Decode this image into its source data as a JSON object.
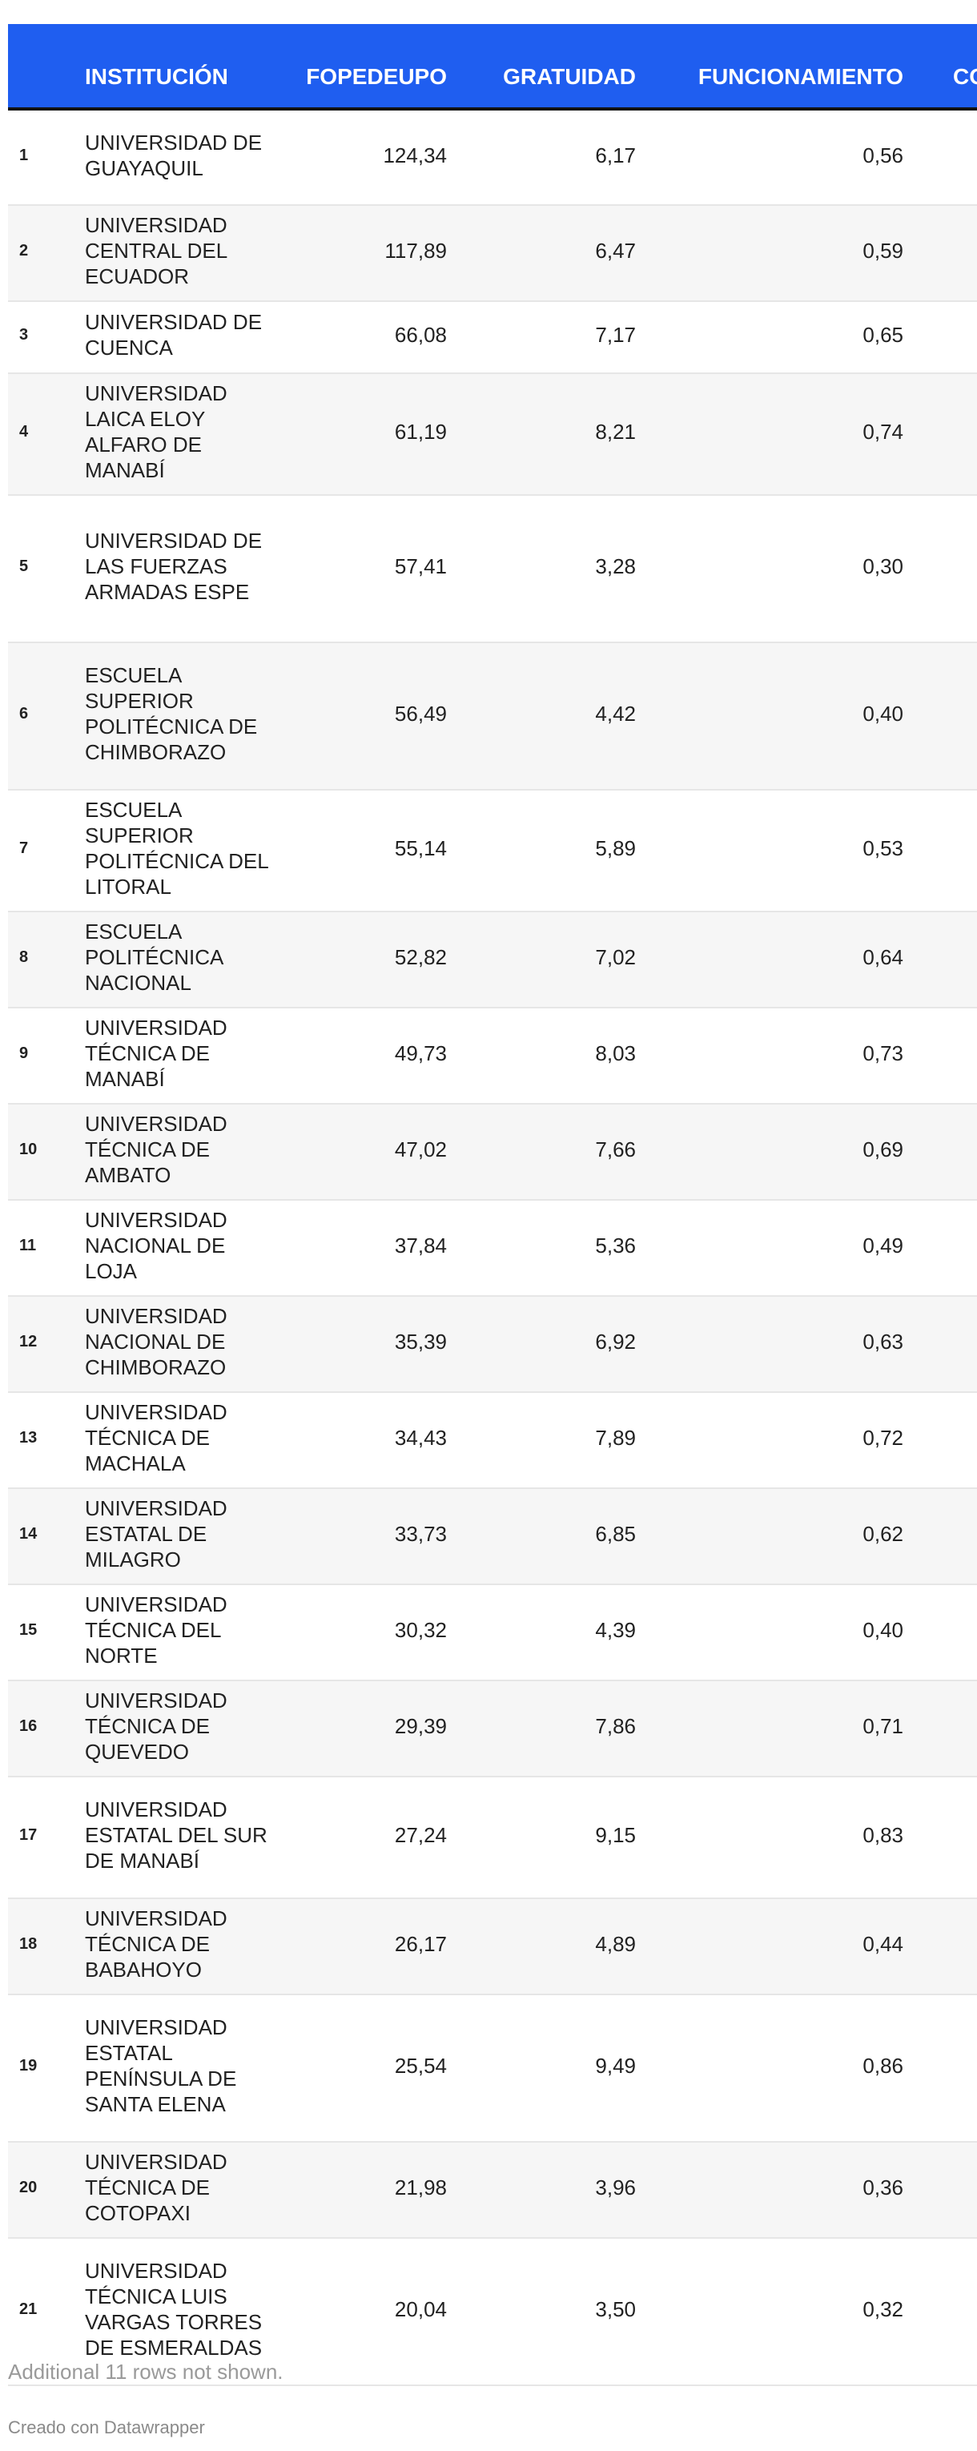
{
  "chart_data": {
    "type": "table",
    "columns": [
      "INSTITUCIÓN",
      "FOPEDEUPO",
      "GRATUIDAD",
      "FUNCIONAMIENTO",
      "CO"
    ],
    "rows": [
      {
        "rank": "1",
        "name": "UNIVERSIDAD DE GUAYAQUIL",
        "fopedeupo": "124,34",
        "gratuidad": "6,17",
        "funcionamiento": "0,56"
      },
      {
        "rank": "2",
        "name": "UNIVERSIDAD CENTRAL DEL ECUADOR",
        "fopedeupo": "117,89",
        "gratuidad": "6,47",
        "funcionamiento": "0,59"
      },
      {
        "rank": "3",
        "name": "UNIVERSIDAD DE CUENCA",
        "fopedeupo": "66,08",
        "gratuidad": "7,17",
        "funcionamiento": "0,65"
      },
      {
        "rank": "4",
        "name": "UNIVERSIDAD LAICA ELOY ALFARO DE MANABÍ",
        "fopedeupo": "61,19",
        "gratuidad": "8,21",
        "funcionamiento": "0,74"
      },
      {
        "rank": "5",
        "name": "UNIVERSIDAD DE LAS FUERZAS ARMADAS ESPE",
        "fopedeupo": "57,41",
        "gratuidad": "3,28",
        "funcionamiento": "0,30"
      },
      {
        "rank": "6",
        "name": "ESCUELA SUPERIOR POLITÉCNICA DE CHIMBORAZO",
        "fopedeupo": "56,49",
        "gratuidad": "4,42",
        "funcionamiento": "0,40"
      },
      {
        "rank": "7",
        "name": "ESCUELA SUPERIOR POLITÉCNICA DEL LITORAL",
        "fopedeupo": "55,14",
        "gratuidad": "5,89",
        "funcionamiento": "0,53"
      },
      {
        "rank": "8",
        "name": "ESCUELA POLITÉCNICA NACIONAL",
        "fopedeupo": "52,82",
        "gratuidad": "7,02",
        "funcionamiento": "0,64"
      },
      {
        "rank": "9",
        "name": "UNIVERSIDAD TÉCNICA DE MANABÍ",
        "fopedeupo": "49,73",
        "gratuidad": "8,03",
        "funcionamiento": "0,73"
      },
      {
        "rank": "10",
        "name": "UNIVERSIDAD TÉCNICA DE AMBATO",
        "fopedeupo": "47,02",
        "gratuidad": "7,66",
        "funcionamiento": "0,69"
      },
      {
        "rank": "11",
        "name": "UNIVERSIDAD NACIONAL DE LOJA",
        "fopedeupo": "37,84",
        "gratuidad": "5,36",
        "funcionamiento": "0,49"
      },
      {
        "rank": "12",
        "name": "UNIVERSIDAD NACIONAL DE CHIMBORAZO",
        "fopedeupo": "35,39",
        "gratuidad": "6,92",
        "funcionamiento": "0,63"
      },
      {
        "rank": "13",
        "name": "UNIVERSIDAD TÉCNICA DE MACHALA",
        "fopedeupo": "34,43",
        "gratuidad": "7,89",
        "funcionamiento": "0,72"
      },
      {
        "rank": "14",
        "name": "UNIVERSIDAD ESTATAL DE MILAGRO",
        "fopedeupo": "33,73",
        "gratuidad": "6,85",
        "funcionamiento": "0,62"
      },
      {
        "rank": "15",
        "name": "UNIVERSIDAD TÉCNICA DEL NORTE",
        "fopedeupo": "30,32",
        "gratuidad": "4,39",
        "funcionamiento": "0,40"
      },
      {
        "rank": "16",
        "name": "UNIVERSIDAD TÉCNICA DE QUEVEDO",
        "fopedeupo": "29,39",
        "gratuidad": "7,86",
        "funcionamiento": "0,71"
      },
      {
        "rank": "17",
        "name": "UNIVERSIDAD ESTATAL DEL SUR DE MANABÍ",
        "fopedeupo": "27,24",
        "gratuidad": "9,15",
        "funcionamiento": "0,83"
      },
      {
        "rank": "18",
        "name": "UNIVERSIDAD TÉCNICA DE BABAHOYO",
        "fopedeupo": "26,17",
        "gratuidad": "4,89",
        "funcionamiento": "0,44"
      },
      {
        "rank": "19",
        "name": "UNIVERSIDAD ESTATAL PENÍNSULA DE SANTA ELENA",
        "fopedeupo": "25,54",
        "gratuidad": "9,49",
        "funcionamiento": "0,86"
      },
      {
        "rank": "20",
        "name": "UNIVERSIDAD TÉCNICA DE COTOPAXI",
        "fopedeupo": "21,98",
        "gratuidad": "3,96",
        "funcionamiento": "0,36"
      },
      {
        "rank": "21",
        "name": "UNIVERSIDAD TÉCNICA LUIS VARGAS TORRES DE ESMERALDAS",
        "fopedeupo": "20,04",
        "gratuidad": "3,50",
        "funcionamiento": "0,32"
      }
    ],
    "header_color": "#1f5ef0"
  },
  "footer": {
    "note": "Additional 11 rows not shown.",
    "credit": "Creado con Datawrapper"
  }
}
